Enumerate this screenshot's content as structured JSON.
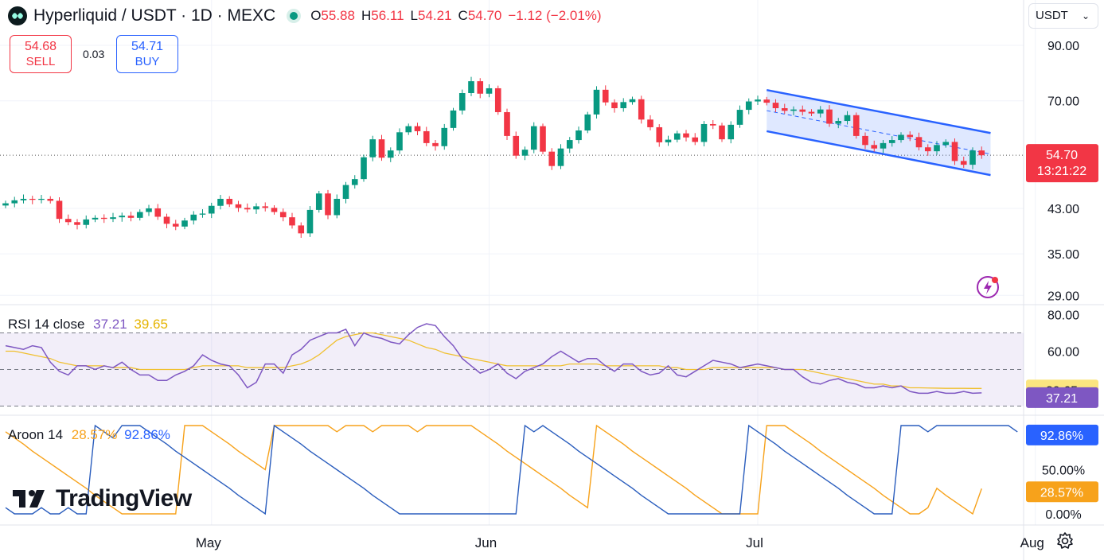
{
  "header": {
    "symbol": "Hyperliquid / USDT · 1D · MEXC",
    "open_label": "O",
    "open": "55.88",
    "high_label": "H",
    "high": "56.11",
    "low_label": "L",
    "low": "54.21",
    "close_label": "C",
    "close": "54.70",
    "change": "−1.12 (−2.01%)"
  },
  "trade": {
    "sell_price": "54.68",
    "sell_label": "SELL",
    "spread": "0.03",
    "buy_price": "54.71",
    "buy_label": "BUY"
  },
  "currency": {
    "label": "USDT"
  },
  "colors": {
    "up": "#089981",
    "down": "#f23645",
    "rsi": "#7e57c2",
    "rsi_ma": "#f0c02f",
    "aroon_up": "#f7a21b",
    "aroon_down": "#2962ff",
    "channel": "#2962ff"
  },
  "price_badge": {
    "value": "54.70",
    "countdown": "13:21:22"
  },
  "rsi_legend": {
    "name": "RSI",
    "params": "14 close",
    "value": "37.21",
    "ma": "39.65"
  },
  "aroon_legend": {
    "name": "Aroon",
    "params": "14",
    "up": "28.57%",
    "down": "92.86%"
  },
  "branding": {
    "name": "TradingView"
  },
  "icons": {
    "settings": "gear-icon",
    "alert": "flash-icon",
    "logo": "hyperliquid-logo-icon"
  },
  "chart_data": [
    {
      "type": "candlestick",
      "title": "Hyperliquid / USDT · 1D · MEXC",
      "x": {
        "type": "date",
        "start": "2024-04-08",
        "end": "2024-07-29",
        "tick_labels": [
          "May",
          "Jun",
          "Jul",
          "Aug"
        ]
      },
      "y_axis": {
        "scale": "log",
        "ticks": [
          "90.00",
          "70.00",
          "43.00",
          "35.00",
          "29.00"
        ]
      },
      "ylim": [
        27.5,
        95
      ],
      "last_price": 54.7,
      "close": [
        44.0,
        44.6,
        44.9,
        44.7,
        44.9,
        44.5,
        41.0,
        40.4,
        39.9,
        40.9,
        41.2,
        41.0,
        41.3,
        41.6,
        41.2,
        42.3,
        43.0,
        41.4,
        40.1,
        39.6,
        40.7,
        41.8,
        42.0,
        43.5,
        44.9,
        43.8,
        43.1,
        42.8,
        43.4,
        43.1,
        42.3,
        41.3,
        39.8,
        38.4,
        42.7,
        46.0,
        41.7,
        44.9,
        47.8,
        49.1,
        54.2,
        58.8,
        54.1,
        55.9,
        60.7,
        62.4,
        61.0,
        57.8,
        57.0,
        61.9,
        67.0,
        72.5,
        76.5,
        72.3,
        74.1,
        66.5,
        59.7,
        54.6,
        56.1,
        62.4,
        55.6,
        52.1,
        56.4,
        58.6,
        61.2,
        65.8,
        73.6,
        69.5,
        67.7,
        69.6,
        70.5,
        64.3,
        62.1,
        58.0,
        58.7,
        60.4,
        59.3,
        58.1,
        63.0,
        62.6,
        58.8,
        62.8,
        67.2,
        69.8,
        70.4,
        69.4,
        67.7,
        66.9,
        67.3,
        66.6,
        66.1,
        67.3,
        63.1,
        63.9,
        65.6,
        59.7,
        57.3,
        56.4,
        57.8,
        58.6,
        60.0,
        59.4,
        56.7,
        55.7,
        57.3,
        58.1,
        53.3,
        52.4,
        55.9,
        54.7
      ]
    },
    {
      "type": "line",
      "title": "RSI 14 close",
      "y_axis": {
        "ticks": [
          "80.00",
          "60.00"
        ],
        "bands": [
          70,
          50,
          30
        ]
      },
      "ylim": [
        25,
        85
      ],
      "series": [
        {
          "name": "RSI",
          "values": [
            63,
            62,
            61,
            63,
            62,
            54,
            49,
            47,
            52,
            52,
            50,
            52,
            51,
            54,
            50,
            47,
            47,
            44,
            44,
            47,
            49,
            52,
            58,
            55,
            53,
            52,
            47,
            40,
            43,
            53,
            53,
            48,
            58,
            61,
            66,
            68,
            70,
            70,
            72,
            63,
            70,
            68,
            67,
            65,
            64,
            69,
            73,
            75,
            74,
            68,
            63,
            56,
            52,
            48,
            50,
            53,
            48,
            45,
            49,
            51,
            53,
            57,
            60,
            57,
            54,
            56,
            56,
            52,
            49,
            53,
            53,
            49,
            47,
            48,
            52,
            47,
            46,
            49,
            52,
            55,
            54,
            53,
            51,
            52,
            53,
            52,
            51,
            50,
            50,
            46,
            43,
            42,
            44,
            45,
            43,
            42,
            40,
            40,
            41,
            40,
            41,
            38,
            37,
            37,
            38,
            37,
            37,
            38,
            37,
            37.21
          ]
        },
        {
          "name": "RSI MA",
          "values": [
            60,
            60,
            59,
            58,
            57,
            56,
            54,
            53,
            52,
            52,
            52,
            52,
            51,
            51,
            51,
            50,
            50,
            50,
            50,
            50,
            50,
            51,
            52,
            52,
            52,
            52,
            52,
            51,
            51,
            51,
            51,
            51,
            52,
            53,
            55,
            58,
            62,
            66,
            68,
            69,
            70,
            70,
            69,
            68,
            67,
            66,
            64,
            62,
            61,
            59,
            58,
            57,
            56,
            55,
            54,
            53,
            52,
            52,
            52,
            52,
            52,
            52,
            52,
            53,
            53,
            53,
            53,
            52,
            52,
            52,
            52,
            52,
            52,
            52,
            51,
            51,
            50,
            50,
            50,
            51,
            51,
            51,
            51,
            51,
            51,
            51,
            51,
            50,
            50,
            50,
            49,
            48,
            47,
            46,
            45,
            44,
            43,
            42,
            42,
            41,
            41,
            40,
            40,
            39.9,
            39.8,
            39.7,
            39.7,
            39.7,
            39.65,
            39.65
          ]
        }
      ]
    },
    {
      "type": "line",
      "title": "Aroon 14",
      "y_axis": {
        "ticks": [
          "50.00%",
          "0.00%"
        ]
      },
      "ylim": [
        0,
        100
      ],
      "series": [
        {
          "name": "Aroon Up",
          "values": [
            93,
            86,
            79,
            71,
            64,
            57,
            50,
            43,
            36,
            29,
            21,
            14,
            7,
            0,
            0,
            0,
            0,
            0,
            0,
            0,
            100,
            100,
            100,
            93,
            86,
            79,
            71,
            64,
            57,
            50,
            100,
            100,
            100,
            100,
            100,
            100,
            100,
            93,
            100,
            100,
            100,
            93,
            100,
            100,
            100,
            100,
            93,
            100,
            100,
            100,
            100,
            100,
            100,
            93,
            86,
            79,
            71,
            64,
            57,
            50,
            43,
            36,
            29,
            21,
            14,
            7,
            100,
            93,
            86,
            79,
            71,
            64,
            57,
            50,
            43,
            36,
            29,
            21,
            14,
            7,
            0,
            0,
            0,
            0,
            0,
            100,
            100,
            100,
            93,
            86,
            79,
            71,
            64,
            57,
            50,
            43,
            36,
            29,
            21,
            14,
            7,
            0,
            0,
            7,
            29,
            21,
            14,
            7,
            0,
            28.57
          ]
        },
        {
          "name": "Aroon Down",
          "values": [
            7,
            0,
            0,
            0,
            7,
            0,
            0,
            7,
            0,
            0,
            100,
            93,
            86,
            100,
            100,
            100,
            93,
            86,
            79,
            71,
            64,
            57,
            50,
            43,
            36,
            29,
            21,
            14,
            7,
            0,
            100,
            93,
            86,
            79,
            71,
            64,
            57,
            50,
            43,
            36,
            29,
            21,
            14,
            7,
            0,
            0,
            0,
            0,
            0,
            0,
            0,
            0,
            0,
            0,
            0,
            0,
            0,
            0,
            100,
            93,
            100,
            93,
            86,
            79,
            71,
            64,
            57,
            50,
            43,
            36,
            29,
            21,
            14,
            7,
            0,
            0,
            0,
            0,
            0,
            0,
            0,
            0,
            0,
            100,
            93,
            86,
            79,
            71,
            64,
            57,
            50,
            43,
            36,
            29,
            21,
            14,
            7,
            0,
            0,
            0,
            100,
            100,
            100,
            93,
            100,
            100,
            100,
            100,
            100,
            100,
            100,
            100,
            100,
            92.86
          ]
        }
      ]
    }
  ]
}
